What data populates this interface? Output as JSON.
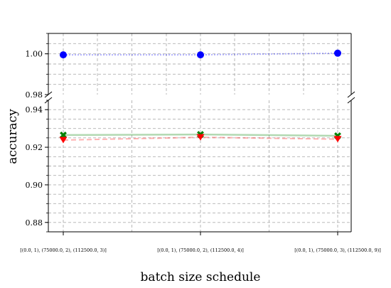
{
  "chart_data": {
    "type": "line",
    "xlabel": "batch size schedule",
    "ylabel": "accuracy",
    "categories": [
      "[(0.0, 1), (75000.0, 2), (112500.0, 3)]",
      "[(0.0, 1), (75000.0, 2), (112500.0, 4)]",
      "[(0.0, 1), (75000.0, 3), (112500.0, 9)]"
    ],
    "broken_y_axis": true,
    "panels": [
      {
        "position": "top",
        "ylim": [
          0.98,
          1.01
        ],
        "yticks": [
          "0.98",
          "1.00"
        ]
      },
      {
        "position": "bottom",
        "ylim": [
          0.875,
          0.945
        ],
        "yticks": [
          "0.88",
          "0.90",
          "0.92",
          "0.94"
        ]
      }
    ],
    "grid": true,
    "series": [
      {
        "values": [
          0.9995,
          0.9995,
          1.0003
        ],
        "color": "#0000ff",
        "marker": "circle",
        "line_style": "dotted"
      },
      {
        "values": [
          0.9265,
          0.9268,
          0.9261
        ],
        "color": "#008000",
        "marker": "x",
        "line_style": "solid"
      },
      {
        "values": [
          0.9238,
          0.9253,
          0.9243
        ],
        "color": "#ff0000",
        "marker": "triangle-down",
        "line_style": "dashed"
      }
    ]
  }
}
